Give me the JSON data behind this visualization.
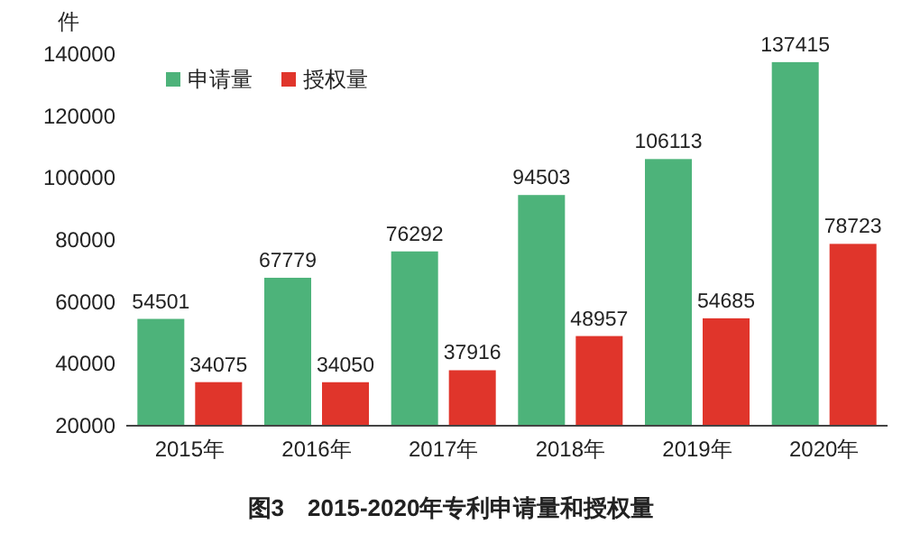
{
  "chart_data": {
    "type": "bar",
    "title": "图3　2015-2020年专利申请量和授权量",
    "ylabel": "件",
    "categories": [
      "2015年",
      "2016年",
      "2017年",
      "2018年",
      "2019年",
      "2020年"
    ],
    "series": [
      {
        "name": "申请量",
        "color": "#4db37a",
        "values": [
          54501,
          67779,
          76292,
          94503,
          106113,
          137415
        ]
      },
      {
        "name": "授权量",
        "color": "#e0352b",
        "values": [
          34075,
          34050,
          37916,
          48957,
          54685,
          78723
        ]
      }
    ],
    "ylim": [
      20000,
      140000
    ],
    "yticks": [
      20000,
      40000,
      60000,
      80000,
      100000,
      120000,
      140000
    ],
    "data_labels": true,
    "legend": "top left",
    "grid": false
  }
}
